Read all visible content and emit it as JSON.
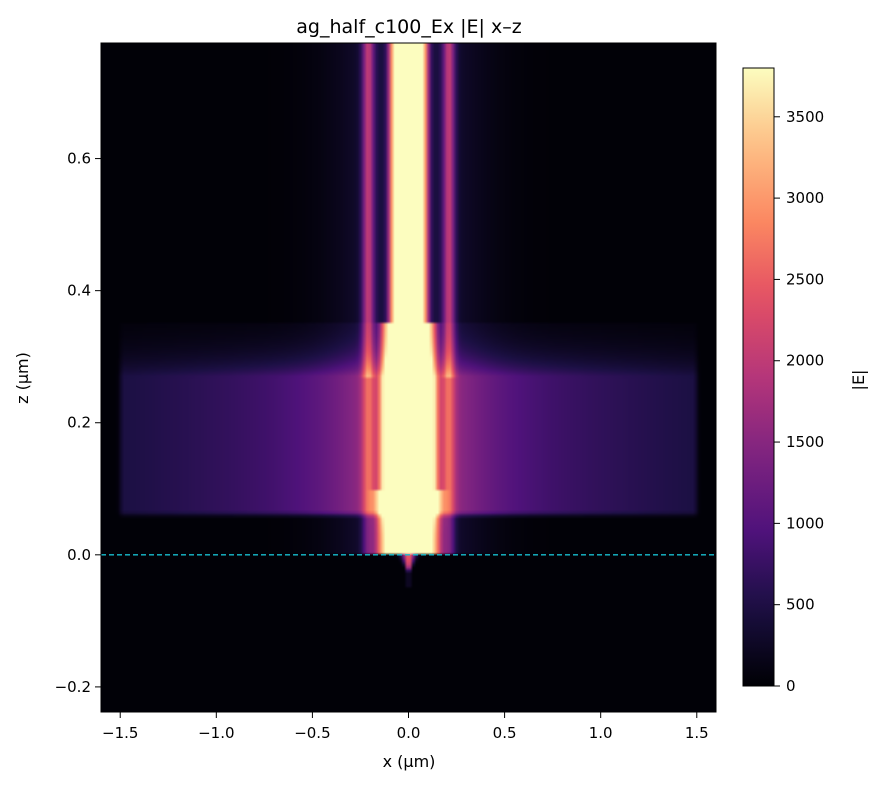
{
  "chart_data": {
    "type": "heatmap",
    "title": "ag_half_c100_Ex |E| x–z",
    "xlabel": "x (µm)",
    "ylabel": "z (µm)",
    "xlim": [
      -1.6,
      1.6
    ],
    "ylim": [
      -0.238,
      0.775
    ],
    "xticks": [
      -1.5,
      -1.0,
      -0.5,
      0.0,
      0.5,
      1.0,
      1.5
    ],
    "xtick_labels": [
      "−1.5",
      "−1.0",
      "−0.5",
      "0.0",
      "0.5",
      "1.0",
      "1.5"
    ],
    "yticks": [
      -0.2,
      0.0,
      0.2,
      0.4,
      0.6
    ],
    "ytick_labels": [
      "−0.2",
      "0.0",
      "0.2",
      "0.4",
      "0.6"
    ],
    "colorbar": {
      "label": "|E|",
      "range": [
        0,
        3800
      ],
      "ticks": [
        0,
        500,
        1000,
        1500,
        2000,
        2500,
        3000,
        3500
      ],
      "tick_labels": [
        "0",
        "500",
        "1000",
        "1500",
        "2000",
        "2500",
        "3000",
        "3500"
      ],
      "colormap": "magma"
    },
    "reference_line": {
      "z": 0.0,
      "style": "dashed",
      "color": "#17becf"
    },
    "field_features": {
      "slab_x_range": [
        -1.52,
        1.52
      ],
      "slab_z_range": [
        0.06,
        0.27
      ],
      "core_half_width": 0.105,
      "core_peak_value": 3800,
      "background_value": 20
    }
  }
}
